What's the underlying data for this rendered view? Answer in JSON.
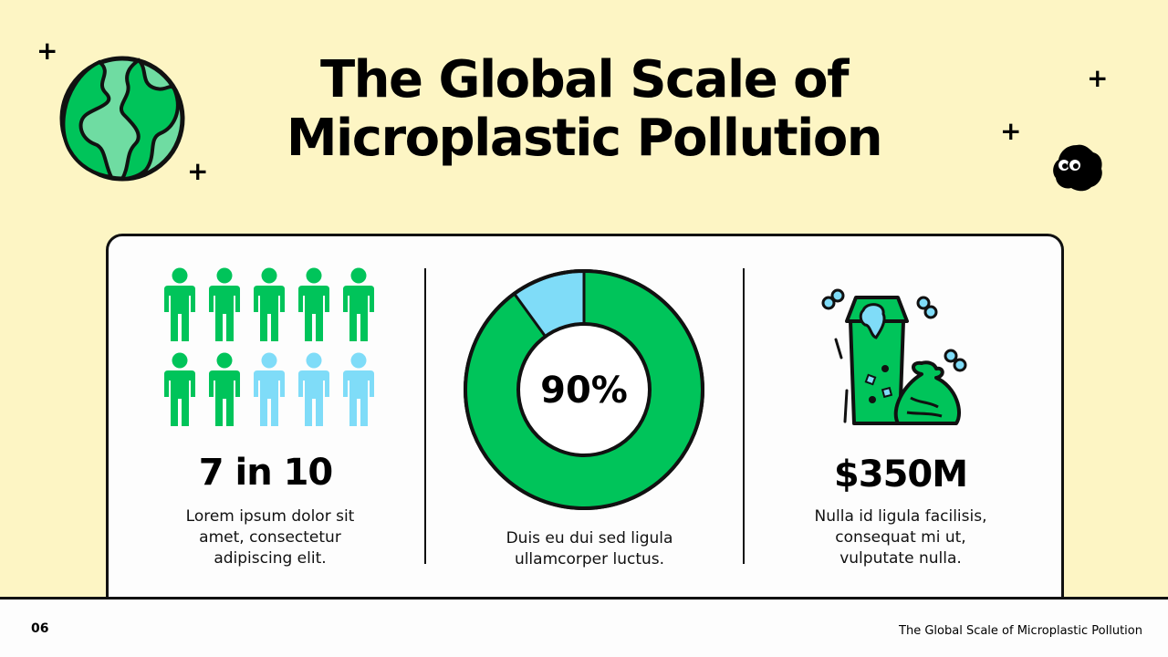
{
  "slide": {
    "title_line1": "The Global Scale of",
    "title_line2": "Microplastic Pollution",
    "page_number": "06",
    "footer_title": "The Global Scale of Microplastic Pollution"
  },
  "colors": {
    "background": "#fdf5c4",
    "primary_green": "#00c45a",
    "light_blue": "#7fdcf8",
    "globe_green": "#6fdca2",
    "text": "#000000"
  },
  "stats": [
    {
      "value": "7 in 10",
      "description": [
        "Lorem ipsum dolor sit",
        "amet, consectetur",
        "adipiscing elit."
      ],
      "icon": "people-icon",
      "highlighted_people": 7,
      "total_people": 10
    },
    {
      "value": "90%",
      "description": [
        "Duis eu dui sed ligula",
        "ullamcorper luctus."
      ],
      "icon": "donut-chart",
      "percent": 90
    },
    {
      "value": "$350M",
      "description": [
        "Nulla id ligula facilisis,",
        "consequat mi ut,",
        "vulputate nulla."
      ],
      "icon": "trash-bin-icon"
    }
  ]
}
